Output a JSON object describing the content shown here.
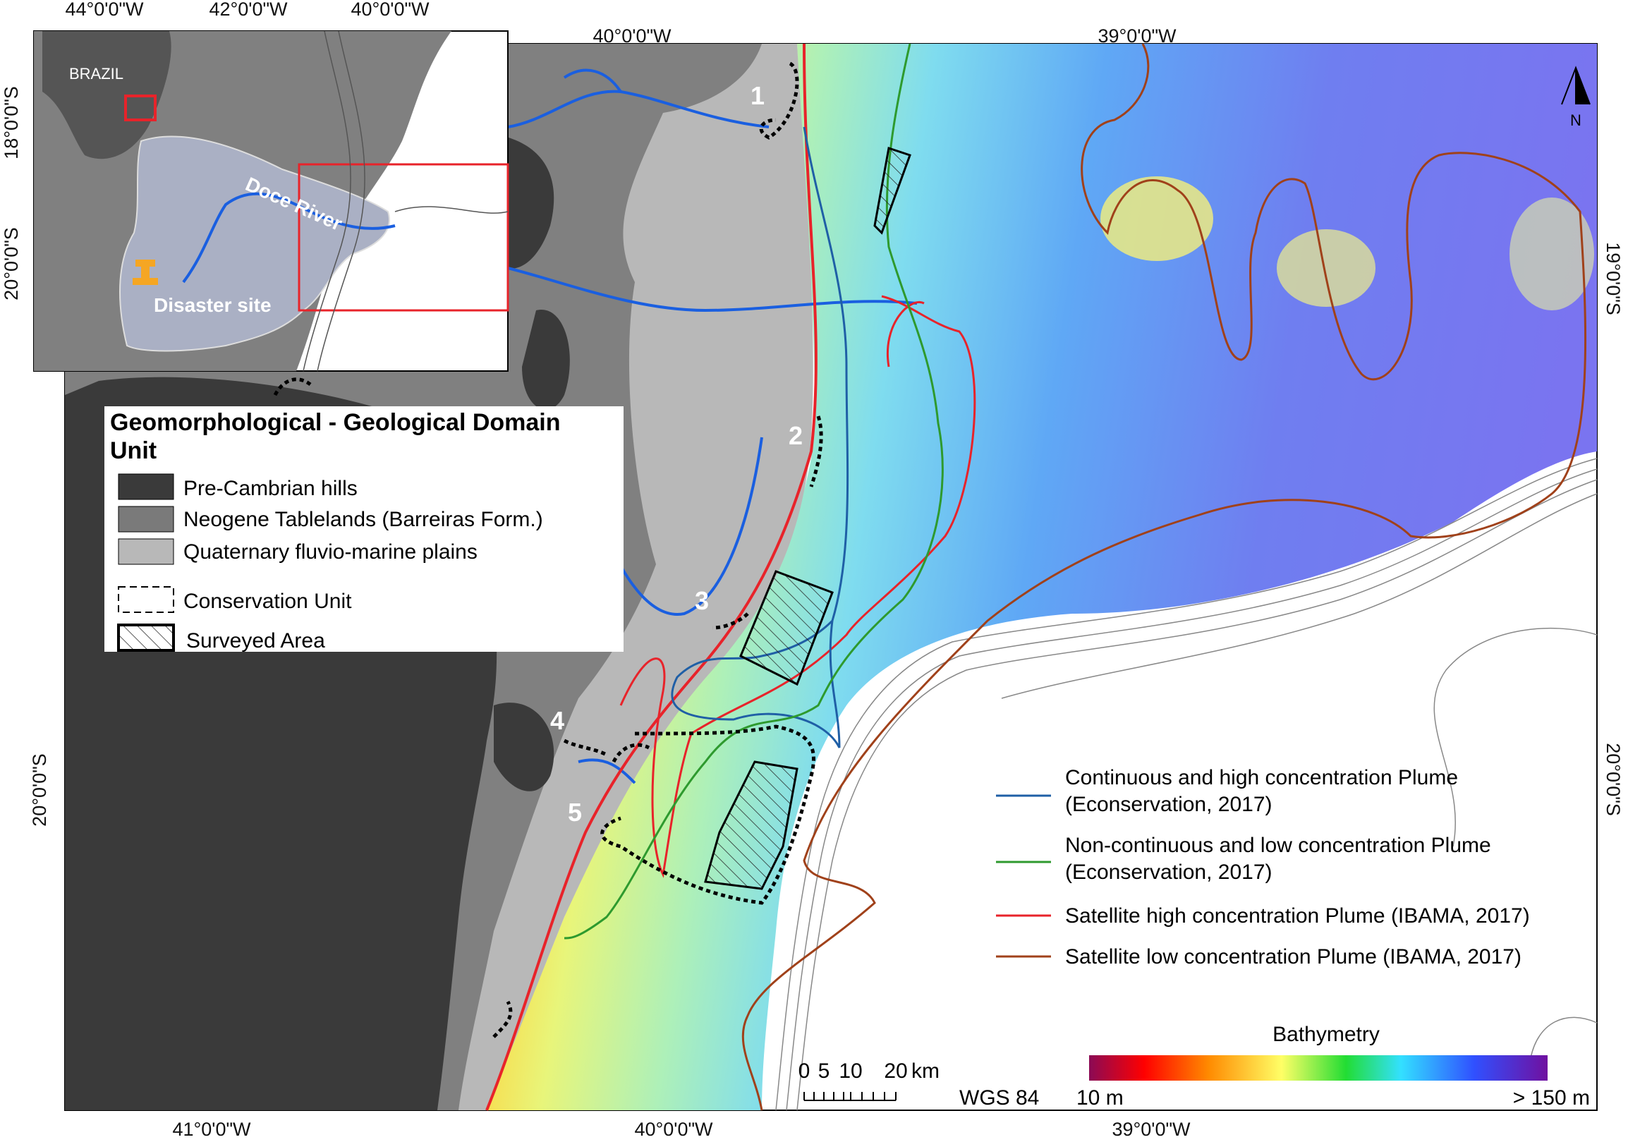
{
  "map": {
    "inset": {
      "country_label": "BRAZIL",
      "river_label": "Doce River",
      "disaster_label": "Disaster site",
      "lon_ticks": [
        "44°0'0\"W",
        "42°0'0\"W",
        "40°0'0\"W"
      ],
      "lat_ticks": [
        "18°0'0\"S",
        "20°0'0\"S"
      ]
    },
    "top_lon_ticks": [
      "40°0'0\"W",
      "39°0'0\"W"
    ],
    "bottom_lon_ticks": [
      "41°0'0\"W",
      "40°0'0\"W",
      "39°0'0\"W"
    ],
    "left_lat_ticks": [
      "20°0'0\"S"
    ],
    "right_lat_ticks": [
      "19°0'0\"S",
      "20°0'0\"S"
    ],
    "north_arrow_label": "N",
    "conservation_numbers": [
      "1",
      "2",
      "3",
      "4",
      "5"
    ],
    "legend_geo": {
      "title_line1": "Geomorphological - Geological Domain",
      "title_line2": "Unit",
      "items": [
        {
          "label": "Pre-Cambrian hills",
          "color": "#3a3a3a"
        },
        {
          "label": "Neogene Tablelands (Barreiras Form.)",
          "color": "#7a7a7a"
        },
        {
          "label": "Quaternary fluvio-marine plains",
          "color": "#b8b8b8"
        }
      ],
      "conservation_label": "Conservation Unit",
      "surveyed_label": "Surveyed Area"
    },
    "legend_plume": {
      "items": [
        {
          "line1": "Continuous and high concentration Plume",
          "line2": "(Econservation, 2017)",
          "color": "#1f5fa6"
        },
        {
          "line1": "Non-continuous and low concentration Plume",
          "line2": "(Econservation, 2017)",
          "color": "#2e9a2e"
        },
        {
          "line1": "Satellite high concentration Plume (IBAMA, 2017)",
          "line2": "",
          "color": "#e8232a"
        },
        {
          "line1": "Satellite low concentration Plume (IBAMA, 2017)",
          "line2": "",
          "color": "#a0411a"
        }
      ]
    },
    "scale_bar": {
      "ticks": [
        "0",
        "5",
        "10",
        "20"
      ],
      "unit": "km",
      "datum": "WGS 84"
    },
    "bathymetry": {
      "title": "Bathymetry",
      "min_label": "10 m",
      "max_label": "> 150 m",
      "colors": [
        "#8b0a55",
        "#ff0000",
        "#ff8a00",
        "#ffff66",
        "#22dd33",
        "#33e0ff",
        "#3050ff",
        "#7010a0"
      ]
    }
  }
}
